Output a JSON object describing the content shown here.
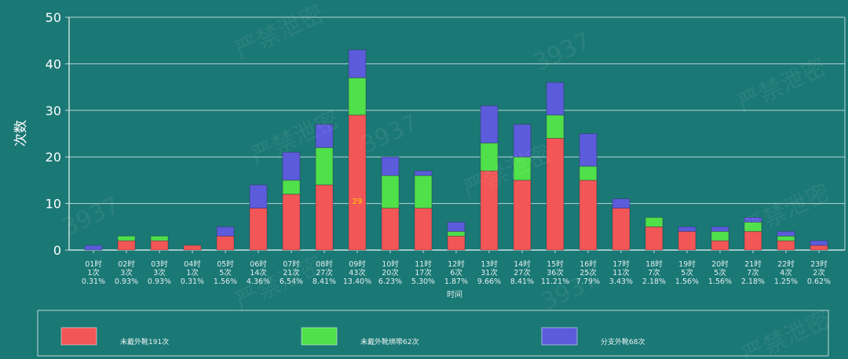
{
  "chart_data": {
    "type": "bar",
    "stacked": true,
    "ylabel": "次数",
    "xlabel": "时间",
    "ylim": [
      0,
      50
    ],
    "yticks": [
      0,
      10,
      20,
      30,
      40,
      50
    ],
    "grid": true,
    "legend_position": "bottom",
    "categories": [
      "01时",
      "02时",
      "03时",
      "04时",
      "05时",
      "06时",
      "07时",
      "08时",
      "09时",
      "10时",
      "11时",
      "12时",
      "13时",
      "14时",
      "15时",
      "16时",
      "17时",
      "18时",
      "19时",
      "20时",
      "21时",
      "22时",
      "23时"
    ],
    "category_counts": [
      "1次",
      "3次",
      "3次",
      "1次",
      "5次",
      "14次",
      "21次",
      "27次",
      "43次",
      "20次",
      "17次",
      "6次",
      "31次",
      "27次",
      "36次",
      "25次",
      "11次",
      "7次",
      "5次",
      "5次",
      "7次",
      "4次",
      "2次"
    ],
    "category_percents": [
      "0.31%",
      "0.93%",
      "0.93%",
      "0.31%",
      "1.56%",
      "4.36%",
      "6.54%",
      "8.41%",
      "13.40%",
      "6.23%",
      "5.30%",
      "1.87%",
      "9.66%",
      "8.41%",
      "11.21%",
      "7.79%",
      "3.43%",
      "2.18%",
      "1.56%",
      "1.56%",
      "2.18%",
      "1.25%",
      "0.62%"
    ],
    "series": [
      {
        "name": "未戴外靴191次",
        "color": "#f25656",
        "values": [
          0,
          2,
          2,
          1,
          3,
          9,
          12,
          14,
          29,
          9,
          9,
          3,
          17,
          15,
          24,
          15,
          9,
          5,
          4,
          2,
          4,
          2,
          1
        ]
      },
      {
        "name": "未戴外靴绑带62次",
        "color": "#4fe04a",
        "values": [
          0,
          1,
          1,
          0,
          0,
          0,
          3,
          8,
          8,
          7,
          7,
          1,
          6,
          5,
          5,
          3,
          0,
          2,
          0,
          2,
          2,
          1,
          0
        ]
      },
      {
        "name": "分支外靴68次",
        "color": "#5b5bdc",
        "values": [
          1,
          0,
          0,
          0,
          2,
          5,
          6,
          5,
          6,
          4,
          1,
          2,
          8,
          7,
          7,
          7,
          2,
          0,
          1,
          1,
          1,
          1,
          1
        ]
      }
    ],
    "annotations": [
      {
        "category": "09时",
        "text": "29",
        "color": "#ffd400"
      }
    ]
  },
  "watermark": {
    "text": "严禁泄密",
    "code": "3937"
  }
}
